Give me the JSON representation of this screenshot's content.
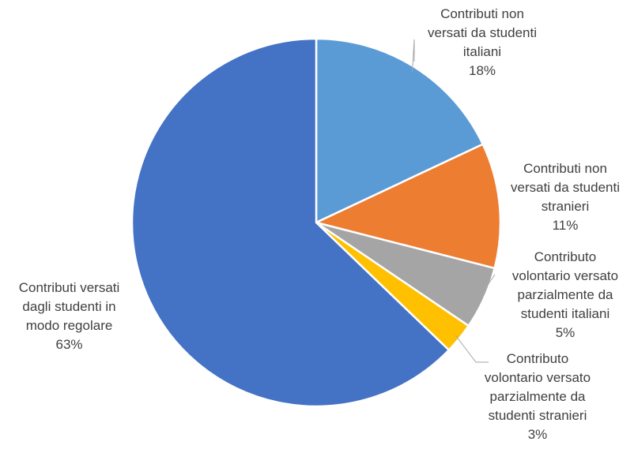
{
  "chart_data": {
    "type": "pie",
    "start_angle_deg": 0,
    "direction": "clockwise",
    "slices": [
      {
        "label_lines": [
          "Contributi non",
          "versati da studenti",
          "italiani"
        ],
        "percent_label": "18%",
        "value": 18,
        "color": "#5B9BD5"
      },
      {
        "label_lines": [
          "Contributi non",
          "versati da studenti",
          "stranieri"
        ],
        "percent_label": "11%",
        "value": 11,
        "color": "#ED7D31"
      },
      {
        "label_lines": [
          "Contributo",
          "volontario versato",
          "parzialmente da",
          "studenti italiani"
        ],
        "percent_label": "5%",
        "value": 5.5,
        "color": "#A5A5A5"
      },
      {
        "label_lines": [
          "Contributo",
          "volontario versato",
          "parzialmente da",
          "studenti stranieri"
        ],
        "percent_label": "3%",
        "value": 2.7,
        "color": "#FFC000"
      },
      {
        "label_lines": [
          "Contributi versati",
          "dagli  studenti in",
          "modo regolare"
        ],
        "percent_label": "63%",
        "value": 62.8,
        "color": "#4472C4"
      }
    ],
    "leader_line_color": "#A6A6A6",
    "slice_border_color": "#FFFFFF"
  }
}
